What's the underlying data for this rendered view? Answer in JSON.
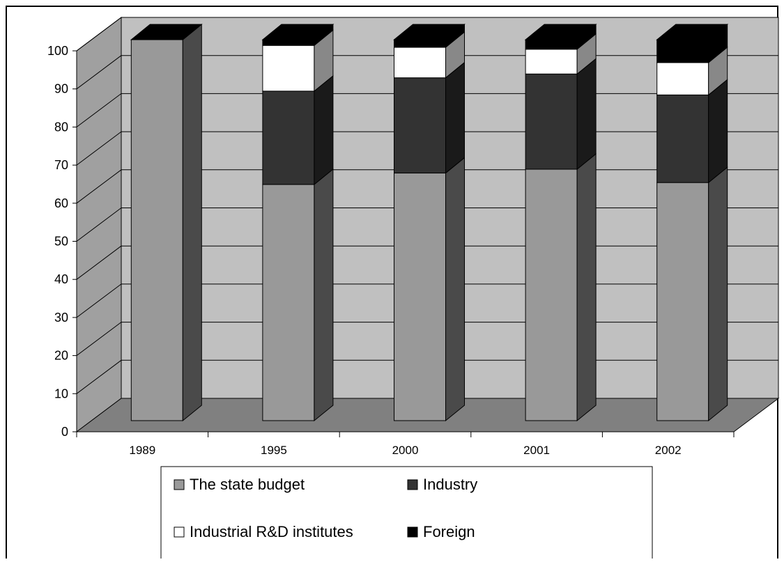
{
  "chart_data": {
    "type": "bar",
    "stacked": true,
    "three_d": true,
    "categories": [
      "1989",
      "1995",
      "2000",
      "2001",
      "2002"
    ],
    "series": [
      {
        "name": "The state budget",
        "values": [
          100,
          62,
          65,
          66,
          62.5
        ],
        "color": "#999999"
      },
      {
        "name": "Industry",
        "values": [
          0,
          24.5,
          25,
          25,
          23
        ],
        "color": "#333333"
      },
      {
        "name": "Industrial R&D institutes",
        "values": [
          0,
          12,
          8,
          6.5,
          8.5
        ],
        "color": "#ffffff"
      },
      {
        "name": "Foreign",
        "values": [
          0,
          1.5,
          2,
          2.5,
          6
        ],
        "color": "#000000"
      }
    ],
    "yticks": [
      "0",
      "10",
      "20",
      "30",
      "40",
      "50",
      "60",
      "70",
      "80",
      "90",
      "100"
    ],
    "ylim": [
      0,
      100
    ],
    "grid": true,
    "legend_placement": "bottom",
    "title": "",
    "xlabel": "",
    "ylabel": ""
  }
}
